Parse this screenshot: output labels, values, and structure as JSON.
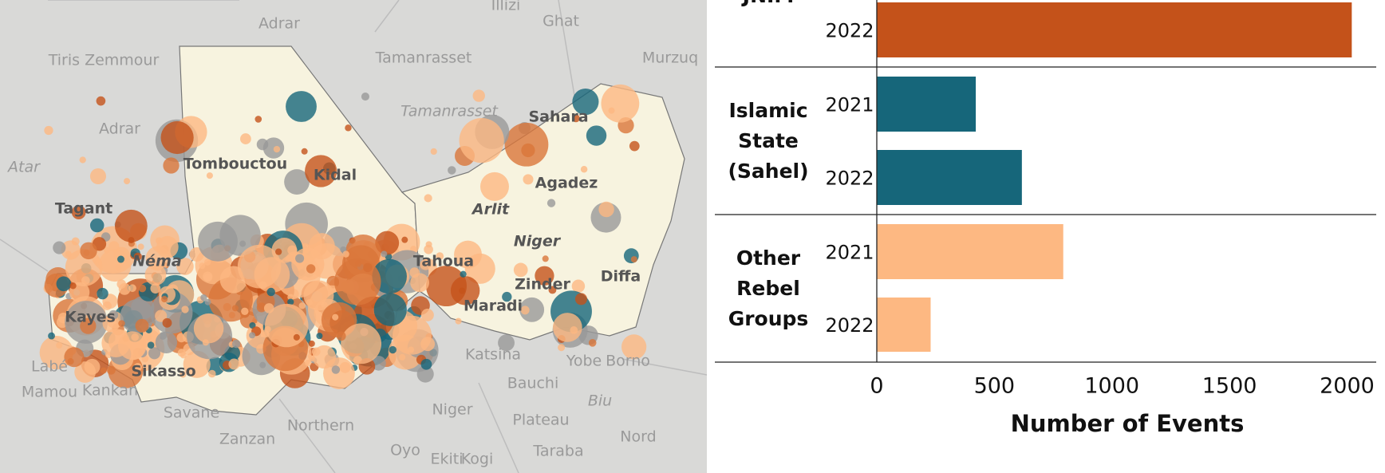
{
  "map": {
    "labels": [
      "Adrar",
      "Illizi",
      "Ghat",
      "Tamanrasset",
      "Murzuq",
      "Tiris Zemmour",
      "Tamanrasset",
      "Sahara",
      "Adrar",
      "Atar",
      "Tombouctou",
      "Kidal",
      "Agadez",
      "Arlit",
      "Niger",
      "Tagant",
      "Néma",
      "Tahoua",
      "Zinder",
      "Diffa",
      "Maradi",
      "Kayes",
      "Katsina",
      "Yobe",
      "Borno",
      "Bauchi",
      "Niger",
      "Plateau",
      "Biu",
      "Savane",
      "Zanzan",
      "Northern",
      "Oyo",
      "Ekiti",
      "Kogi",
      "Taraba",
      "Nord",
      "Labé",
      "Mamou",
      "Kankan",
      "Sikasso"
    ]
  },
  "chart_data": {
    "type": "bar",
    "orientation": "horizontal",
    "x_label": "Number of Events",
    "xlim": [
      0,
      2124
    ],
    "xticks": [
      0,
      500,
      1000,
      1500,
      2000
    ],
    "groups": [
      {
        "name": "JNIM",
        "color": "#c4521a",
        "categories": [
          "2022"
        ],
        "values": [
          2020
        ]
      },
      {
        "name": "Islamic State (Sahel)",
        "color": "#16667a",
        "categories": [
          "2021",
          "2022"
        ],
        "values": [
          421,
          617
        ]
      },
      {
        "name": "Other Rebel Groups",
        "color": "#fdb882",
        "categories": [
          "2021",
          "2022"
        ],
        "values": [
          793,
          229
        ]
      }
    ]
  }
}
